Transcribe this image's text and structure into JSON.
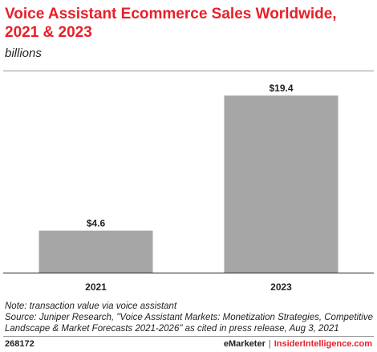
{
  "title": "Voice Assistant Ecommerce Sales Worldwide, 2021 & 2023",
  "subtitle": "billions",
  "colors": {
    "title": "#e8202a",
    "bar": "#a6a6a6",
    "brand_accent": "#e8202a"
  },
  "chart_data": {
    "type": "bar",
    "categories": [
      "2021",
      "2023"
    ],
    "values": [
      4.6,
      19.4
    ],
    "value_labels": [
      "$4.6",
      "$19.4"
    ],
    "ylim": [
      0,
      21
    ],
    "grid": false,
    "legend": "none",
    "xlabel": "",
    "ylabel": ""
  },
  "note": "Note: transaction value via voice assistant",
  "source": "Source: Juniper Research, \"Voice Assistant Markets: Monetization Strategies, Competitive Landscape & Market Forecasts 2021-2026\" as cited in press release, Aug 3, 2021",
  "footer": {
    "chart_id": "268172",
    "brand": "eMarketer",
    "separator": "|",
    "brand2": "InsiderIntelligence.com"
  }
}
